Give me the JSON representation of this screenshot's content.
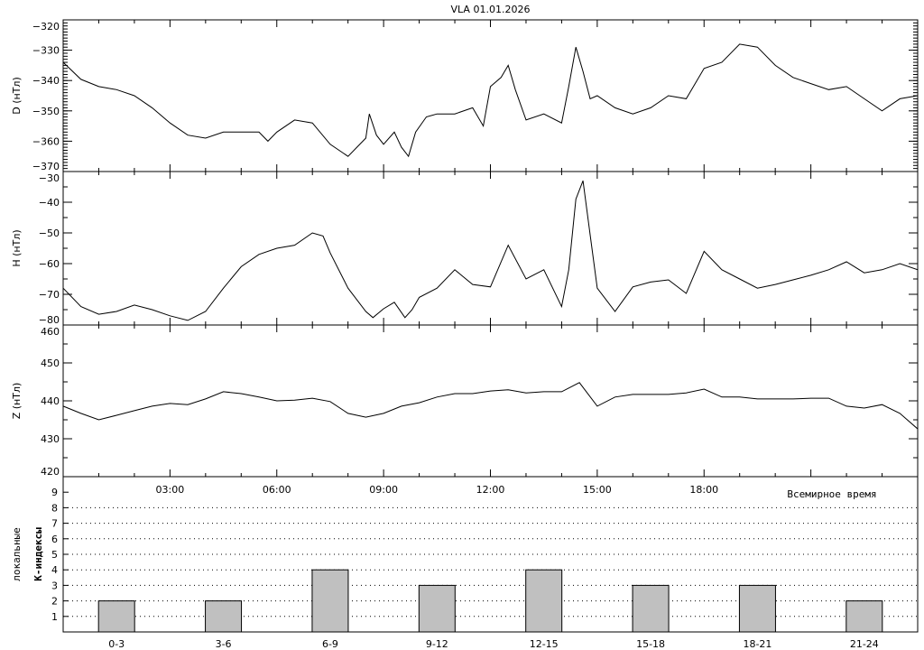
{
  "chart_data": [
    {
      "type": "line",
      "title": "VLA   01.01.2026",
      "ylabel": "D (нТл)",
      "ylim": [
        -370,
        -320
      ],
      "yticks": [
        -320,
        -330,
        -340,
        -350,
        -360,
        -370
      ],
      "xlim": [
        0,
        24
      ],
      "x": [
        0,
        0.5,
        1,
        1.5,
        2,
        2.5,
        3,
        3.5,
        4,
        4.5,
        5,
        5.5,
        5.75,
        6,
        6.5,
        7,
        7.5,
        8,
        8.5,
        8.6,
        8.8,
        9,
        9.3,
        9.5,
        9.7,
        9.9,
        10.2,
        10.5,
        11,
        11.5,
        11.8,
        12,
        12.3,
        12.5,
        12.7,
        13,
        13.5,
        14,
        14.2,
        14.4,
        14.6,
        14.8,
        15,
        15.5,
        16,
        16.5,
        17,
        17.5,
        18,
        18.5,
        19,
        19.5,
        20,
        20.5,
        21,
        21.5,
        22,
        22.5,
        23,
        23.5,
        24
      ],
      "values": [
        -334,
        -339.6,
        -342,
        -343,
        -345,
        -349,
        -354,
        -358,
        -359,
        -357,
        -357,
        -357,
        -360,
        -357,
        -353,
        -354,
        -361,
        -365,
        -359,
        -351,
        -358,
        -361,
        -357,
        -362,
        -365,
        -357,
        -352,
        -351,
        -351,
        -349,
        -355,
        -342,
        -339,
        -335,
        -343,
        -353,
        -351,
        -354,
        -342,
        -329,
        -337,
        -346,
        -345,
        -349,
        -351,
        -349,
        -345,
        -346,
        -336,
        -334,
        -328,
        -329,
        -335,
        -339,
        -341,
        -343,
        -342,
        -346,
        -350,
        -346,
        -345
      ]
    },
    {
      "type": "line",
      "ylabel": "H (нТл)",
      "ylim": [
        -80,
        -30
      ],
      "yticks": [
        -30,
        -40,
        -50,
        -60,
        -70,
        -80
      ],
      "xlim": [
        0,
        24
      ],
      "x": [
        0,
        0.5,
        1,
        1.5,
        2,
        2.5,
        3,
        3.5,
        4,
        4.5,
        5,
        5.5,
        6,
        6.5,
        7,
        7.3,
        7.5,
        8,
        8.5,
        8.7,
        9,
        9.3,
        9.6,
        9.8,
        10,
        10.5,
        11,
        11.5,
        12,
        12.5,
        13,
        13.5,
        14,
        14.2,
        14.4,
        14.6,
        14.8,
        15,
        15.5,
        16,
        16.5,
        17,
        17.5,
        18,
        18.5,
        19,
        19.5,
        20,
        20.5,
        21,
        21.5,
        22,
        22.5,
        23,
        23.5,
        24
      ],
      "values": [
        -68,
        -74,
        -76.5,
        -75.6,
        -73.5,
        -75,
        -77,
        -78.5,
        -75.6,
        -68,
        -61,
        -57,
        -55,
        -54,
        -50,
        -51,
        -56.5,
        -68,
        -75.6,
        -77.6,
        -74.7,
        -72.6,
        -77.6,
        -75,
        -71,
        -68,
        -62,
        -66.8,
        -67.6,
        -54,
        -65,
        -62,
        -74,
        -62,
        -39,
        -33,
        -50.6,
        -68,
        -75.6,
        -67.6,
        -66,
        -65.3,
        -69.7,
        -56,
        -62,
        -65,
        -68,
        -66.8,
        -65.3,
        -63.8,
        -62,
        -59.4,
        -63,
        -62,
        -60,
        -62
      ]
    },
    {
      "type": "line",
      "ylabel": "Z (нТл)",
      "ylim": [
        420,
        460
      ],
      "yticks": [
        420,
        430,
        440,
        450,
        460
      ],
      "xlim": [
        0,
        24
      ],
      "xticks": [
        3,
        6,
        9,
        12,
        15,
        18
      ],
      "xtick_labels": [
        "03:00",
        "06:00",
        "09:00",
        "12:00",
        "15:00",
        "18:00"
      ],
      "xlabel": "Всемирное время",
      "x": [
        0,
        0.5,
        1,
        1.5,
        2,
        2.5,
        3,
        3.5,
        4,
        4.5,
        5,
        5.5,
        6,
        6.5,
        7,
        7.5,
        8,
        8.5,
        9,
        9.5,
        10,
        10.5,
        11,
        11.5,
        12,
        12.5,
        13,
        13.5,
        14,
        14.5,
        15,
        15.5,
        16,
        16.5,
        17,
        17.5,
        18,
        18.5,
        19,
        19.5,
        20,
        20.5,
        21,
        21.5,
        22,
        22.5,
        23,
        23.5,
        24
      ],
      "values": [
        438.6,
        436.7,
        435,
        436.2,
        437.4,
        438.6,
        439.3,
        439,
        440.5,
        442.4,
        441.9,
        441,
        440,
        440.2,
        440.7,
        439.8,
        436.7,
        435.7,
        436.7,
        438.6,
        439.5,
        441,
        441.9,
        441.9,
        442.6,
        442.9,
        442.1,
        442.4,
        442.4,
        444.8,
        438.6,
        441,
        441.7,
        441.7,
        441.7,
        442.1,
        443.1,
        441,
        441,
        440.5,
        440.5,
        440.5,
        440.7,
        440.7,
        438.6,
        438.1,
        439,
        436.7,
        432.6
      ]
    },
    {
      "type": "bar",
      "ylabel_lines": [
        "локальные",
        "К-индексы"
      ],
      "ylim": [
        0,
        10
      ],
      "yticks": [
        1,
        2,
        3,
        4,
        5,
        6,
        7,
        8,
        9
      ],
      "grid": "dotted horizontal",
      "bar_color": "#c0c0c0",
      "categories": [
        "0-3",
        "3-6",
        "6-9",
        "9-12",
        "12-15",
        "15-18",
        "18-21",
        "21-24"
      ],
      "values": [
        2,
        2,
        4,
        3,
        4,
        3,
        3,
        2
      ]
    }
  ]
}
